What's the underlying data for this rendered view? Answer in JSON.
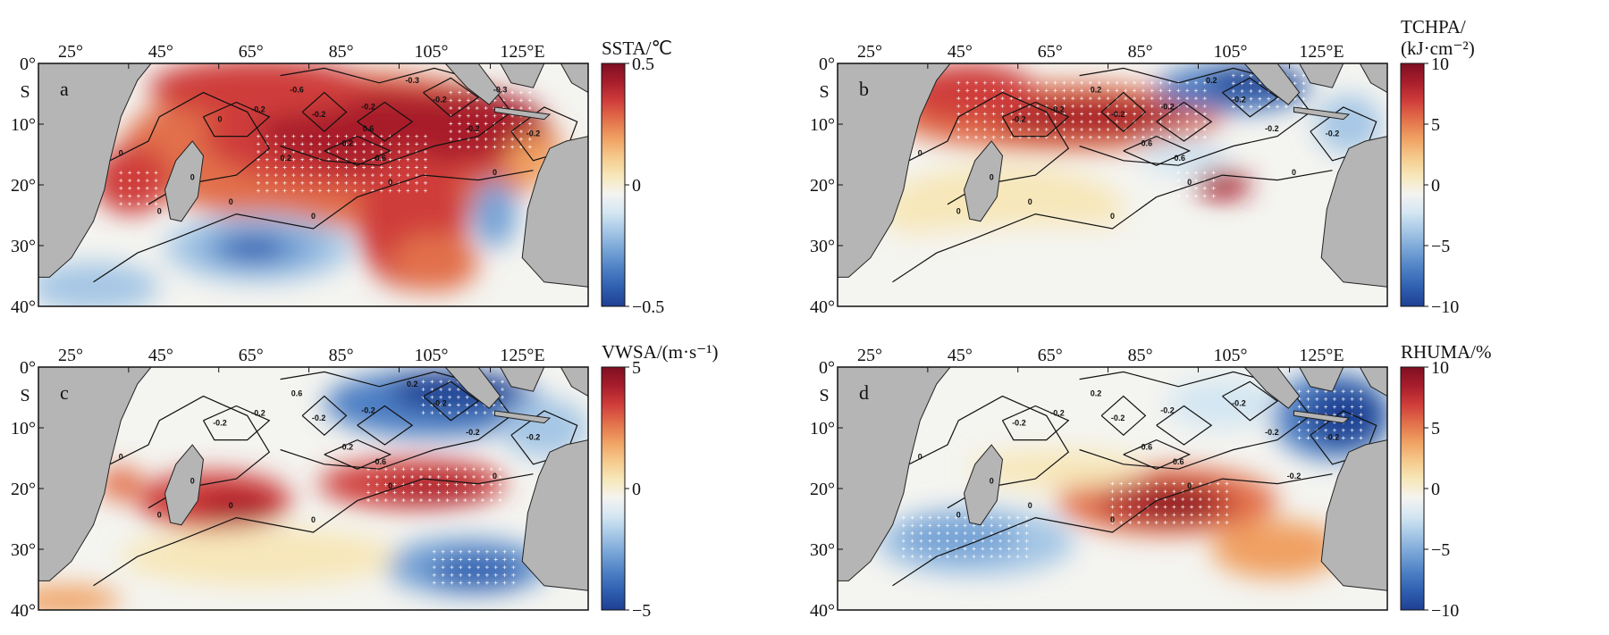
{
  "figure": {
    "lon_ticks": [
      "25°",
      "45°",
      "65°",
      "85°",
      "105°",
      "125°E"
    ],
    "lat_ticks": [
      "0°",
      "10°",
      "20°",
      "30°",
      "40°"
    ],
    "lat_hemisphere": "S",
    "colors": {
      "land": "#b5b5b5",
      "ramp": [
        "#1f3f93",
        "#2f5fb0",
        "#4d7fc4",
        "#76a3d6",
        "#a4c6e5",
        "#d3e6f2",
        "#f4f4f0",
        "#f7e7b9",
        "#f5c98b",
        "#f0a062",
        "#e2704b",
        "#cf3d3a",
        "#a81d2c",
        "#7e0f22"
      ]
    },
    "panels": [
      {
        "id": "a",
        "label": "a",
        "colorbar": {
          "title_lines": [
            "SSTA/℃"
          ],
          "labels": [
            "0.5",
            "0",
            "−0.5"
          ]
        },
        "contour_labels": [
          "0",
          "0",
          "0",
          "0",
          "0",
          "0",
          "0",
          "0",
          "-0.2",
          "-0.2",
          "-0.2",
          "-0.2",
          "-0.2",
          "-0.2",
          "-0.2",
          "-0.6",
          "-0.6",
          "-0.3",
          "-0.3",
          "0.6",
          "0.2"
        ]
      },
      {
        "id": "b",
        "label": "b",
        "colorbar": {
          "title_lines": [
            "TCHPA/",
            "(kJ·cm⁻²)"
          ],
          "labels": [
            "10",
            "5",
            "0",
            "−5",
            "−10"
          ]
        },
        "contour_labels": [
          "0",
          "0",
          "0",
          "0",
          "0",
          "0",
          "0",
          "-0.2",
          "-0.2",
          "-0.2",
          "-0.2",
          "-0.2",
          "-0.2",
          "-0.2",
          "-0.6",
          "-0.6",
          "0.2",
          "0.2"
        ]
      },
      {
        "id": "c",
        "label": "c",
        "colorbar": {
          "title_lines": [
            "VWSA/(m·s⁻¹)"
          ],
          "labels": [
            "5",
            "0",
            "−5"
          ]
        },
        "contour_labels": [
          "0",
          "0",
          "0",
          "0",
          "0",
          "0",
          "0",
          "-0.2",
          "-0.2",
          "-0.2",
          "-0.2",
          "-0.2",
          "-0.2",
          "-0.2",
          "-0.2",
          "-0.6",
          "0.6",
          "0.2"
        ]
      },
      {
        "id": "d",
        "label": "d",
        "colorbar": {
          "title_lines": [
            "RHUMA/%"
          ],
          "labels": [
            "10",
            "5",
            "0",
            "−5",
            "−10"
          ]
        },
        "contour_labels": [
          "0",
          "0",
          "0",
          "0",
          "0",
          "0",
          "-0.2",
          "-0.2",
          "-0.2",
          "-0.2",
          "-0.2",
          "-0.2",
          "-0.2",
          "-0.2",
          "-0.6",
          "0.6",
          "0.2"
        ]
      }
    ]
  }
}
